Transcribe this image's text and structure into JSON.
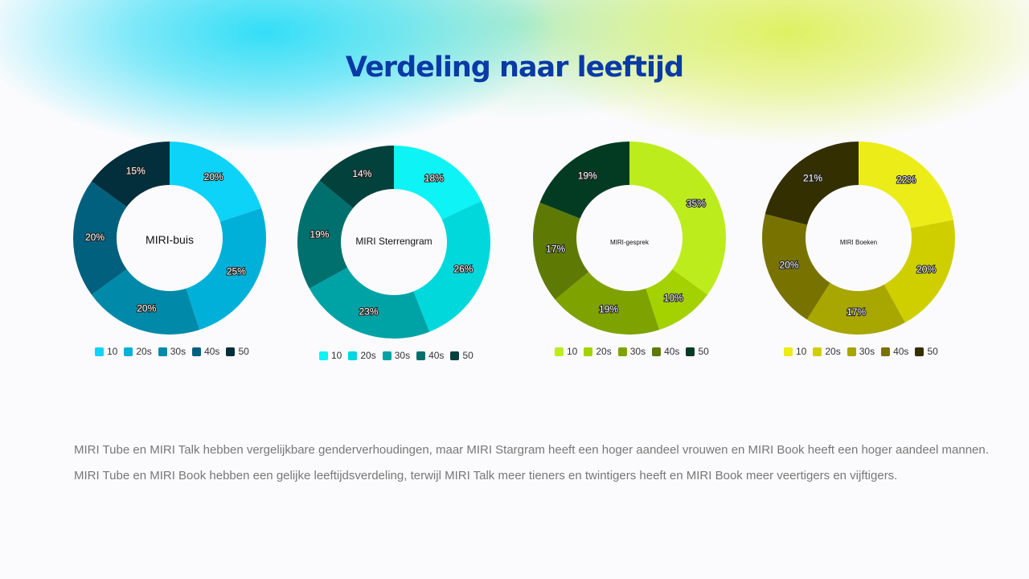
{
  "title": "Verdeling naar leeftijd",
  "notes": [
    "MIRI Tube en MIRI Talk hebben vergelijkbare genderverhoudingen, maar MIRI Stargram heeft een hoger aandeel vrouwen en MIRI Book heeft een hoger aandeel mannen.",
    "MIRI Tube en MIRI Book hebben een gelijke leeftijdsverdeling, terwijl MIRI Talk meer tieners en twintigers heeft en MIRI Book meer veertigers en vijftigers."
  ],
  "chart_data": [
    {
      "type": "pie",
      "variant": "donut",
      "center_label": "MIRI-buis",
      "categories": [
        "10",
        "20s",
        "30s",
        "40s",
        "50"
      ],
      "values": [
        20,
        25,
        20,
        20,
        15
      ],
      "labels": [
        "20%",
        "25%",
        "20%",
        "20%",
        "15%"
      ],
      "colors": [
        "#0cd3f7",
        "#00b0d8",
        "#0089a8",
        "#00607e",
        "#032e3c"
      ],
      "legend_position": "bottom"
    },
    {
      "type": "pie",
      "variant": "donut",
      "center_label": "MIRI Sterrengram",
      "categories": [
        "10",
        "20s",
        "30s",
        "40s",
        "50"
      ],
      "values": [
        18,
        26,
        23,
        19,
        14
      ],
      "labels": [
        "18%",
        "26%",
        "23%",
        "19%",
        "14%"
      ],
      "colors": [
        "#0ef3f5",
        "#00d8dc",
        "#00a3a5",
        "#00706e",
        "#03413d"
      ],
      "legend_position": "bottom"
    },
    {
      "type": "pie",
      "variant": "donut",
      "center_label": "MIRI-gesprek",
      "categories": [
        "10",
        "20s",
        "30s",
        "40s",
        "50"
      ],
      "values": [
        35,
        10,
        19,
        17,
        19
      ],
      "labels": [
        "35%",
        "10%",
        "19%",
        "17%",
        "19%"
      ],
      "colors": [
        "#bdec1c",
        "#a4d200",
        "#7ea300",
        "#5e7a05",
        "#033b22"
      ],
      "legend_position": "bottom"
    },
    {
      "type": "pie",
      "variant": "donut",
      "center_label": "MIRI Boeken",
      "categories": [
        "10",
        "20s",
        "30s",
        "40s",
        "50"
      ],
      "values": [
        22,
        20,
        17,
        20,
        21
      ],
      "labels": [
        "22%",
        "20%",
        "17%",
        "20%",
        "21%"
      ],
      "colors": [
        "#ecec18",
        "#cfcf00",
        "#a8a600",
        "#787300",
        "#342f00"
      ],
      "legend_position": "bottom"
    }
  ]
}
